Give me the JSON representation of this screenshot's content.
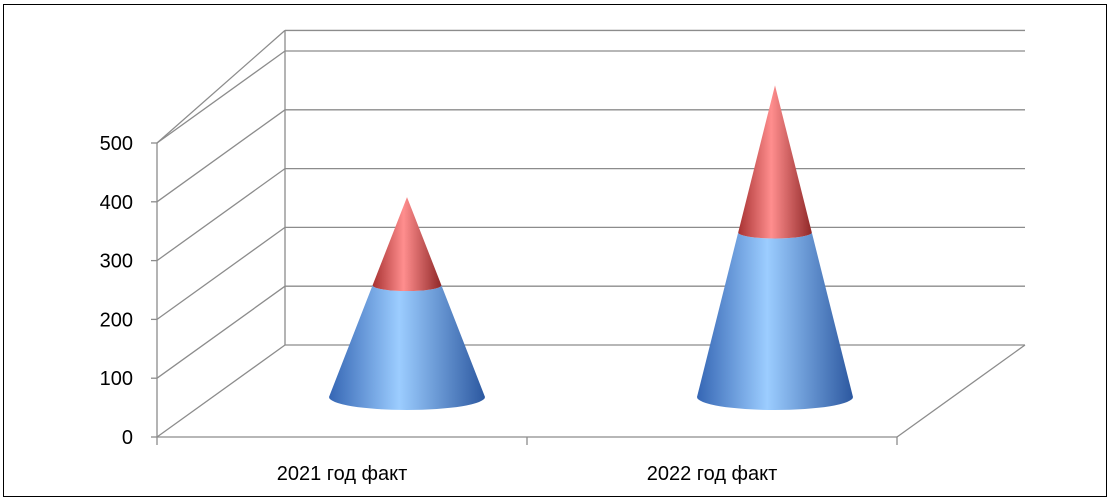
{
  "chart_data": {
    "type": "bar",
    "subtype": "stacked-3d-cone",
    "categories": [
      "2021 год факт",
      "2022 год факт"
    ],
    "series": [
      {
        "values": [
          190,
          280
        ],
        "color": "#5b8fdc"
      },
      {
        "values": [
          150,
          250
        ],
        "color": "#e05a5a"
      }
    ],
    "ylim": [
      0,
      500
    ],
    "yticks": [
      0,
      100,
      200,
      300,
      400,
      500
    ],
    "ytick_labels": [
      "0",
      "100",
      "200",
      "300",
      "400",
      "500"
    ],
    "grid": true,
    "legend": "none",
    "title": "",
    "xlabel": "",
    "ylabel": ""
  }
}
